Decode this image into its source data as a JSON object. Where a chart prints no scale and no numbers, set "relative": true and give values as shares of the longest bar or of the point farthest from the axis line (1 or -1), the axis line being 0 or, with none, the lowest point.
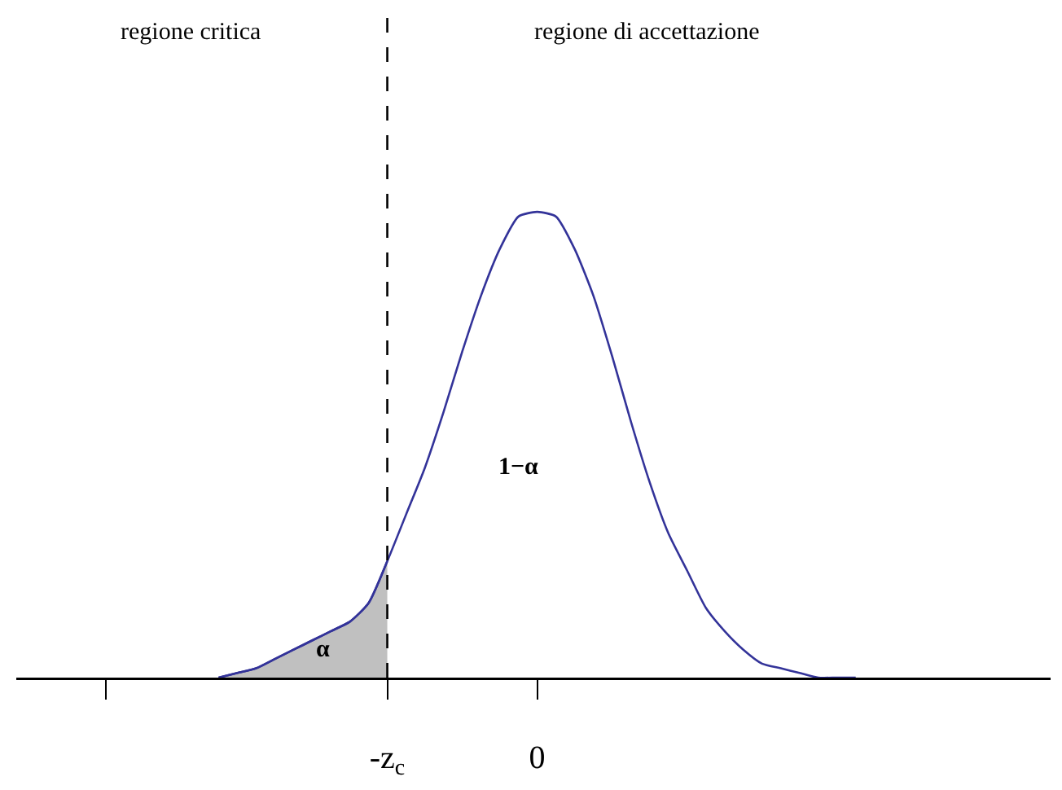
{
  "chart_data": {
    "type": "line",
    "relative": true,
    "categories": [
      null,
      null,
      null,
      null,
      null,
      null,
      null,
      null,
      null,
      null,
      null,
      null,
      null,
      null,
      null,
      "-z$_{c}$",
      null,
      null,
      null,
      null,
      null,
      null,
      null,
      "0",
      null,
      null,
      null,
      null,
      null,
      null,
      null,
      null,
      null,
      null,
      null,
      null,
      null,
      null,
      null,
      null,
      null
    ],
    "series": [
      {
        "color": "#333399",
        "values": [
          null,
          null,
          null,
          null,
          null,
          null,
          0,
          0.01,
          0.02,
          0.04,
          0.06,
          0.08,
          0.1,
          0.12,
          0.16,
          0.25,
          0.35,
          0.45,
          0.57,
          0.7,
          0.82,
          0.92,
          0.99,
          1,
          0.99,
          0.92,
          0.82,
          0.69,
          0.55,
          0.42,
          0.31,
          0.23,
          0.15,
          0.1,
          0.06,
          0.03,
          0.02,
          0.01,
          0,
          0,
          0
        ]
      },
      {
        "type": "area",
        "color": "#c0c0c0",
        "values": [
          null,
          null,
          null,
          null,
          null,
          null,
          0,
          0.01,
          0.02,
          0.04,
          0.06,
          0.08,
          0.1,
          0.12,
          0.16,
          0.25,
          null,
          null,
          null,
          null,
          null,
          null,
          null,
          null,
          null,
          null,
          null,
          null,
          null,
          null,
          null,
          null,
          null,
          null,
          null,
          null,
          null,
          null,
          null,
          null,
          null
        ]
      }
    ],
    "ref_lines": [
      {
        "axis": "x",
        "value": "-z$_{c}$",
        "line_style": "dashed",
        "color": "#000000"
      }
    ],
    "annotations": [
      "regione critica",
      "regione di accettazione",
      "1−α",
      "α"
    ],
    "grid": false,
    "tick_labels": "x",
    "marker": "none"
  }
}
